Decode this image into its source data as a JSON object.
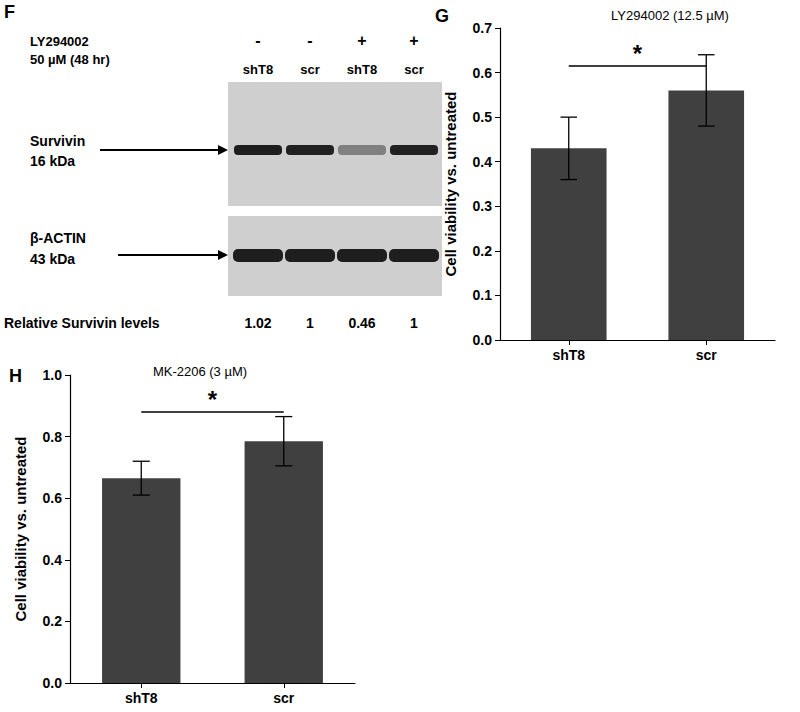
{
  "blot": {
    "panel": "F",
    "treatment": {
      "label": "LY294002",
      "detail": "50 µM (48 hr)",
      "lanes": [
        "-",
        "-",
        "+",
        "+"
      ]
    },
    "lanes": [
      "shT8",
      "scr",
      "shT8",
      "scr"
    ],
    "rows": [
      {
        "label": "Survivin",
        "size": "16 kDa"
      },
      {
        "label": "β-ACTIN",
        "size": "43 kDa"
      }
    ],
    "quantification": {
      "label": "Relative Survivin levels",
      "values": [
        1.02,
        1,
        0.46,
        1
      ]
    }
  },
  "chart_data": [
    {
      "type": "bar",
      "panel": "G",
      "title": "LY294002 (12.5 µM)",
      "y_label": "Cell viability vs. untreated",
      "categories": [
        "shT8",
        "scr"
      ],
      "values": [
        0.43,
        0.56
      ],
      "errors": [
        0.07,
        0.08
      ],
      "color": "#404040",
      "ylim": [
        0,
        0.7
      ],
      "yticks": [
        {
          "value": 0,
          "label": "0.0"
        },
        0.1,
        0.2,
        0.3,
        0.4,
        0.5,
        0.6,
        0.7
      ],
      "grid": false,
      "annotations": [
        {
          "text": "*",
          "between": [
            "shT8",
            "scr"
          ]
        }
      ]
    },
    {
      "type": "bar",
      "panel": "H",
      "title": "MK-2206 (3 µM)",
      "y_label": "Cell viability vs. untreated",
      "categories": [
        "shT8",
        "scr"
      ],
      "values": [
        0.665,
        0.785
      ],
      "errors": [
        0.055,
        0.08
      ],
      "color": "#404040",
      "ylim": [
        0,
        1.0
      ],
      "yticks": [
        {
          "value": 0,
          "label": "0.0"
        },
        0.2,
        0.4,
        0.6,
        0.8,
        {
          "value": 1.0,
          "label": "1.0"
        }
      ],
      "grid": false,
      "annotations": [
        {
          "text": "*",
          "between": [
            "shT8",
            "scr"
          ]
        }
      ]
    }
  ]
}
